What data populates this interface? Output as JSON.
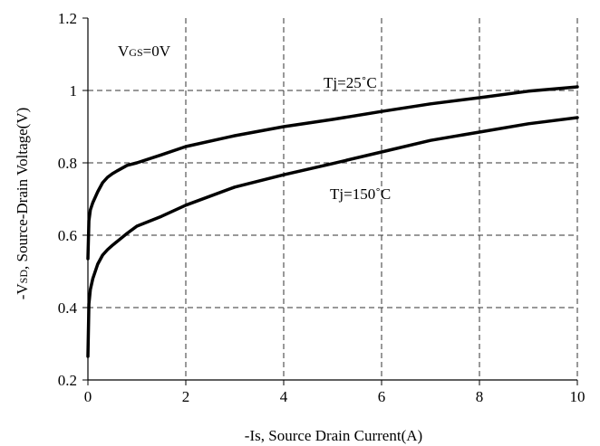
{
  "chart_data": {
    "type": "line",
    "xlabel": "-Is, Source Drain Current(A)",
    "ylabel": "-VSD, Source-Drain Voltage(V)",
    "ylabel_parts": {
      "prefix": "-V",
      "subscript": "SD",
      "suffix": ", Source-Drain Voltage(V)"
    },
    "xlim": [
      0,
      10
    ],
    "ylim": [
      0.2,
      1.2
    ],
    "x_ticks": [
      "0",
      "2",
      "4",
      "6",
      "8",
      "10"
    ],
    "y_ticks": [
      "0.2",
      "0.4",
      "0.6",
      "0.8",
      "1",
      "1.2"
    ],
    "grid": "dashed",
    "annotations": {
      "vgs": {
        "prefix": "V",
        "subscript": "GS",
        "suffix": "=0V"
      },
      "tj25": "Tj=25˚C",
      "tj150": "Tj=150˚C"
    },
    "series": [
      {
        "name": "Tj=25˚C",
        "x": [
          0,
          0.02,
          0.05,
          0.1,
          0.2,
          0.3,
          0.4,
          0.5,
          0.6,
          0.8,
          1,
          1.5,
          2,
          3,
          4,
          5,
          6,
          7,
          8,
          9,
          10
        ],
        "y": [
          0.535,
          0.64,
          0.67,
          0.69,
          0.72,
          0.745,
          0.76,
          0.77,
          0.778,
          0.793,
          0.8,
          0.822,
          0.845,
          0.875,
          0.9,
          0.92,
          0.942,
          0.963,
          0.98,
          0.998,
          1.01
        ]
      },
      {
        "name": "Tj=150˚C",
        "x": [
          0,
          0.02,
          0.05,
          0.1,
          0.2,
          0.3,
          0.4,
          0.5,
          0.6,
          0.8,
          1,
          1.5,
          2,
          3,
          4,
          5,
          6,
          7,
          8,
          9,
          10
        ],
        "y": [
          0.265,
          0.41,
          0.45,
          0.48,
          0.52,
          0.545,
          0.56,
          0.572,
          0.583,
          0.605,
          0.625,
          0.652,
          0.683,
          0.733,
          0.767,
          0.798,
          0.83,
          0.862,
          0.885,
          0.908,
          0.925
        ]
      }
    ]
  }
}
